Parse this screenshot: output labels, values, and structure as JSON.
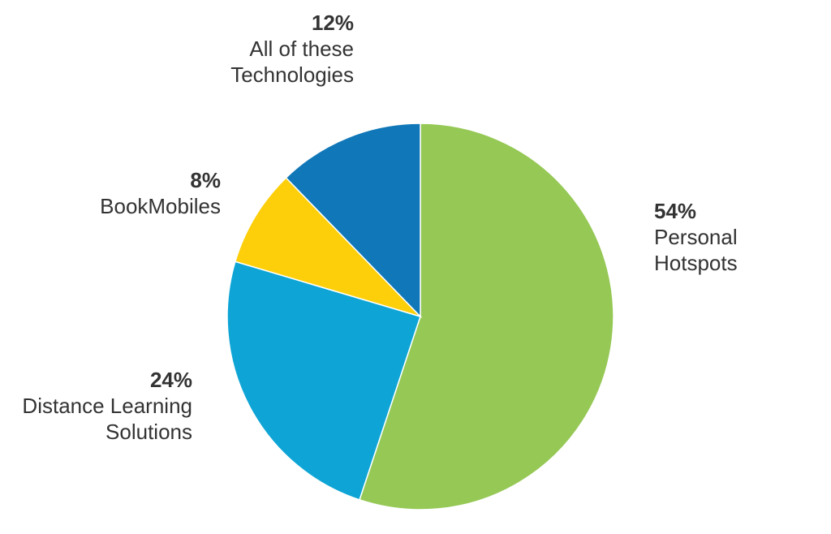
{
  "chart_data": {
    "type": "pie",
    "start_angle_deg": 0,
    "direction": "clockwise",
    "slices": [
      {
        "pct_label": "54%",
        "value": 54,
        "label_lines": [
          "Personal",
          "Hotspots"
        ],
        "color": "#95c855"
      },
      {
        "pct_label": "24%",
        "value": 24,
        "label_lines": [
          "Distance Learning",
          "Solutions"
        ],
        "color": "#0ea5d6"
      },
      {
        "pct_label": "8%",
        "value": 8,
        "label_lines": [
          "BookMobiles"
        ],
        "color": "#fccf0a"
      },
      {
        "pct_label": "12%",
        "value": 12,
        "label_lines": [
          "All of these",
          "Technologies"
        ],
        "color": "#1077b8"
      }
    ]
  }
}
